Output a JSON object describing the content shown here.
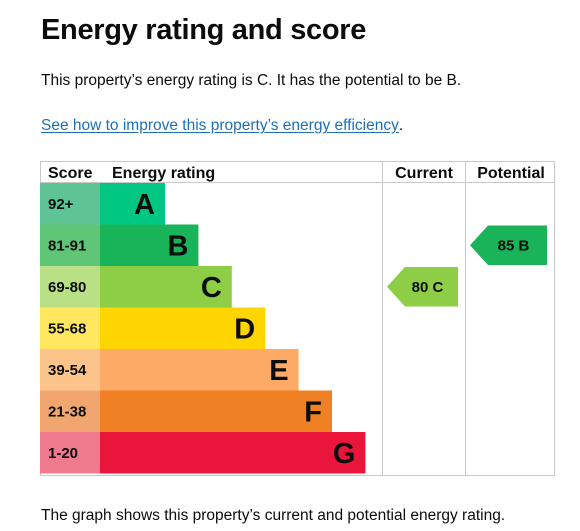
{
  "page": {
    "title": "Energy rating and score",
    "summary": "This property’s energy rating is C. It has the potential to be B.",
    "link_text": "See how to improve this property’s energy efficiency",
    "link_suffix": ".",
    "footer": "The graph shows this property’s current and potential energy rating."
  },
  "chart_data": {
    "type": "bar",
    "headers": {
      "score": "Score",
      "rating": "Energy rating",
      "current": "Current",
      "potential": "Potential"
    },
    "bands": [
      {
        "score": "92+",
        "letter": "A",
        "score_color": "#5ec496",
        "bar_color": "#00c781"
      },
      {
        "score": "81-91",
        "letter": "B",
        "score_color": "#5fc678",
        "bar_color": "#19b459"
      },
      {
        "score": "69-80",
        "letter": "C",
        "score_color": "#b9e084",
        "bar_color": "#8dce46"
      },
      {
        "score": "55-68",
        "letter": "D",
        "score_color": "#ffe860",
        "bar_color": "#ffd500"
      },
      {
        "score": "39-54",
        "letter": "E",
        "score_color": "#fcc48a",
        "bar_color": "#fcaa65"
      },
      {
        "score": "21-38",
        "letter": "F",
        "score_color": "#f1a66f",
        "bar_color": "#ef8023"
      },
      {
        "score": "1-20",
        "letter": "G",
        "score_color": "#ef7a8e",
        "bar_color": "#e9153b"
      }
    ],
    "current": {
      "value": 80,
      "letter": "C",
      "label": "80  C",
      "color": "#8dce46"
    },
    "potential": {
      "value": 85,
      "letter": "B",
      "label": "85  B",
      "color": "#19b459"
    }
  }
}
